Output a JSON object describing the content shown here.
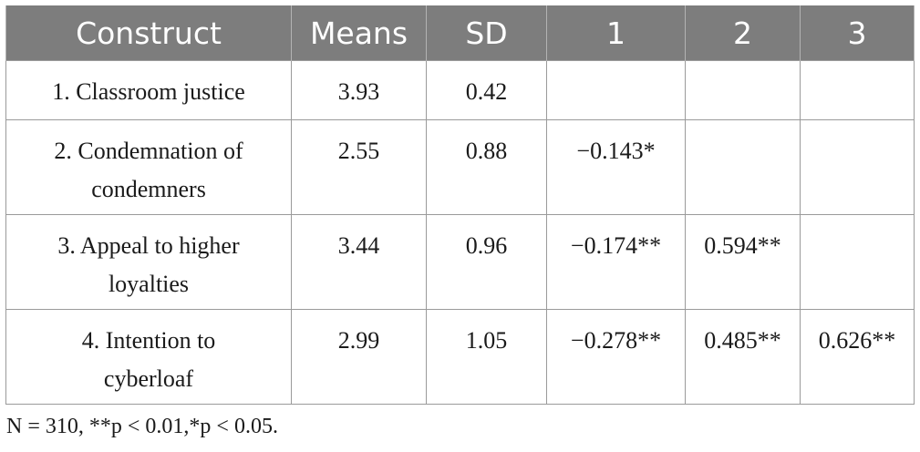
{
  "table": {
    "headers": [
      "Construct",
      "Means",
      "SD",
      "1",
      "2",
      "3"
    ],
    "rows": [
      {
        "construct": "1. Classroom justice",
        "mean": "3.93",
        "sd": "0.42",
        "c1": "",
        "c2": "",
        "c3": ""
      },
      {
        "construct": "2. Condemnation of condemners",
        "mean": "2.55",
        "sd": "0.88",
        "c1": "−0.143*",
        "c2": "",
        "c3": ""
      },
      {
        "construct": "3. Appeal to higher loyalties",
        "mean": "3.44",
        "sd": "0.96",
        "c1": "−0.174**",
        "c2": "0.594**",
        "c3": ""
      },
      {
        "construct": "4. Intention to cyberloaf",
        "mean": "2.99",
        "sd": "1.05",
        "c1": "−0.278**",
        "c2": "0.485**",
        "c3": "0.626**"
      }
    ]
  },
  "note": "N = 310, **p < 0.01,*p < 0.05.",
  "colors": {
    "header_bg": "#7d7d7d",
    "header_text": "#ffffff",
    "grid": "#9a9a9a"
  }
}
